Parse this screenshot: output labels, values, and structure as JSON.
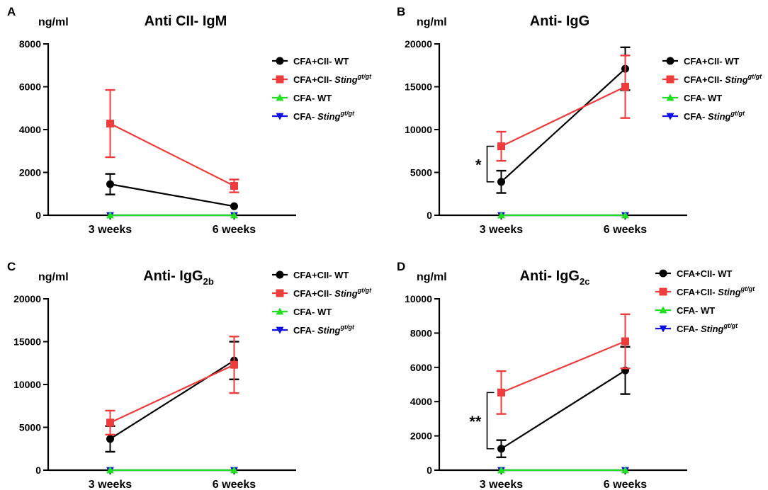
{
  "colors": {
    "wt": "#000000",
    "sting": "#ee3b3b",
    "cfa_wt": "#22dd22",
    "cfa_sting": "#1010e0",
    "axis": "#000000"
  },
  "chart_data": [
    {
      "panel": "A",
      "type": "line",
      "title": "Anti CII- IgM",
      "title_sub": "",
      "ylabel": "ng/ml",
      "xlabel": "",
      "categories": [
        "3 weeks",
        "6 weeks"
      ],
      "ylim": [
        0,
        8000
      ],
      "yticks": [
        0,
        2000,
        4000,
        6000,
        8000
      ],
      "series": [
        {
          "name": "CFA+CII- WT",
          "marker": "circle",
          "color_key": "wt",
          "values": [
            1450,
            420
          ],
          "errors": [
            480,
            0
          ]
        },
        {
          "name": "CFA+CII- Sting",
          "sup": "gt/gt",
          "marker": "square",
          "color_key": "sting",
          "values": [
            4280,
            1370
          ],
          "errors": [
            1570,
            300
          ]
        },
        {
          "name": "CFA- WT",
          "marker": "triangle-up",
          "color_key": "cfa_wt",
          "values": [
            0,
            0
          ],
          "errors": [
            0,
            0
          ]
        },
        {
          "name": "CFA- Sting",
          "sup": "gt/gt",
          "marker": "triangle-down",
          "color_key": "cfa_sting",
          "values": [
            0,
            0
          ],
          "errors": [
            0,
            0
          ]
        }
      ],
      "legend": "right",
      "significance": []
    },
    {
      "panel": "B",
      "type": "line",
      "title": "Anti- IgG",
      "title_sub": "",
      "ylabel": "ng/ml",
      "xlabel": "",
      "categories": [
        "3 weeks",
        "6 weeks"
      ],
      "ylim": [
        0,
        20000
      ],
      "yticks": [
        0,
        5000,
        10000,
        15000,
        20000
      ],
      "series": [
        {
          "name": "CFA+CII- WT",
          "marker": "circle",
          "color_key": "wt",
          "values": [
            3900,
            17100
          ],
          "errors": [
            1300,
            2500
          ]
        },
        {
          "name": "CFA+CII- Sting",
          "sup": "gt/gt",
          "marker": "square",
          "color_key": "sting",
          "values": [
            8050,
            15000
          ],
          "errors": [
            1700,
            3650
          ]
        },
        {
          "name": "CFA- WT",
          "marker": "triangle-up",
          "color_key": "cfa_wt",
          "values": [
            0,
            0
          ],
          "errors": [
            0,
            0
          ]
        },
        {
          "name": "CFA- Sting",
          "sup": "gt/gt",
          "marker": "triangle-down",
          "color_key": "cfa_sting",
          "values": [
            0,
            0
          ],
          "errors": [
            0,
            0
          ]
        }
      ],
      "legend": "right",
      "significance": [
        {
          "category": "3 weeks",
          "label": "*",
          "low": 3900,
          "high": 8050
        }
      ]
    },
    {
      "panel": "C",
      "type": "line",
      "title": "Anti- IgG",
      "title_sub": "2b",
      "ylabel": "ng/ml",
      "xlabel": "",
      "categories": [
        "3 weeks",
        "6 weeks"
      ],
      "ylim": [
        0,
        20000
      ],
      "yticks": [
        0,
        5000,
        10000,
        15000,
        20000
      ],
      "series": [
        {
          "name": "CFA+CII- WT",
          "marker": "circle",
          "color_key": "wt",
          "values": [
            3650,
            12800
          ],
          "errors": [
            1500,
            2200
          ]
        },
        {
          "name": "CFA+CII- Sting",
          "sup": "gt/gt",
          "marker": "square",
          "color_key": "sting",
          "values": [
            5550,
            12300
          ],
          "errors": [
            1400,
            3300
          ]
        },
        {
          "name": "CFA- WT",
          "marker": "triangle-up",
          "color_key": "cfa_wt",
          "values": [
            0,
            0
          ],
          "errors": [
            0,
            0
          ]
        },
        {
          "name": "CFA- Sting",
          "sup": "gt/gt",
          "marker": "triangle-down",
          "color_key": "cfa_sting",
          "values": [
            0,
            0
          ],
          "errors": [
            0,
            0
          ]
        }
      ],
      "legend": "top-right",
      "significance": []
    },
    {
      "panel": "D",
      "type": "line",
      "title": "Anti- IgG",
      "title_sub": "2c",
      "ylabel": "ng/ml",
      "xlabel": "",
      "categories": [
        "3 weeks",
        "6 weeks"
      ],
      "ylim": [
        0,
        10000
      ],
      "yticks": [
        0,
        2000,
        4000,
        6000,
        8000,
        10000
      ],
      "series": [
        {
          "name": "CFA+CII- WT",
          "marker": "circle",
          "color_key": "wt",
          "values": [
            1250,
            5820
          ],
          "errors": [
            500,
            1380
          ]
        },
        {
          "name": "CFA+CII- Sting",
          "sup": "gt/gt",
          "marker": "square",
          "color_key": "sting",
          "values": [
            4530,
            7520
          ],
          "errors": [
            1250,
            1580
          ]
        },
        {
          "name": "CFA- WT",
          "marker": "triangle-up",
          "color_key": "cfa_wt",
          "values": [
            0,
            0
          ],
          "errors": [
            0,
            0
          ]
        },
        {
          "name": "CFA- Sting",
          "sup": "gt/gt",
          "marker": "triangle-down",
          "color_key": "cfa_sting",
          "values": [
            0,
            0
          ],
          "errors": [
            0,
            0
          ]
        }
      ],
      "legend": "top-right",
      "significance": [
        {
          "category": "3 weeks",
          "label": "**",
          "low": 1250,
          "high": 4530
        }
      ]
    }
  ]
}
